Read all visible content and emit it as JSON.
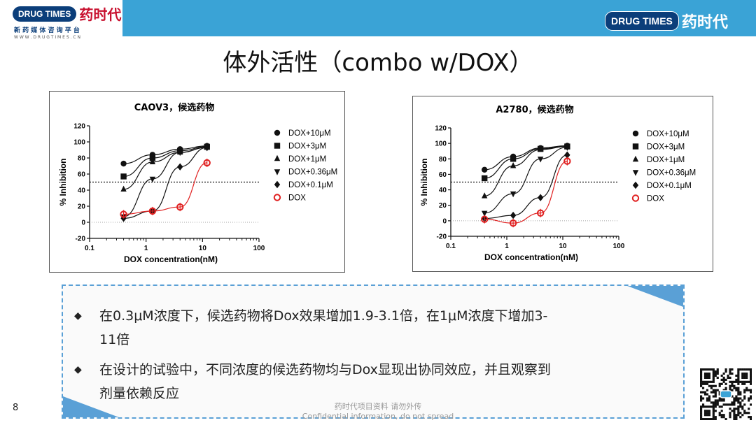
{
  "header": {
    "logo_left": {
      "pill": "DRUG TIMES",
      "cn": "药时代",
      "sub1": "新 药 媒 体 咨 询 平 台",
      "sub2": "W W W . D R U G T I M E S . C N"
    },
    "logo_right": {
      "pill": "DRUG TIMES",
      "cn": "药时代"
    }
  },
  "slide": {
    "title": "体外活性（combo w/DOX）",
    "page_number": "8",
    "footer_line1": "药时代项目资料 请勿外传",
    "footer_line2": "Confidential information, do not spread"
  },
  "bullets": [
    {
      "line1": "在0.3μM浓度下，候选药物将Dox效果增加1.9-3.1倍，在1μM浓度下增加3-",
      "line2": "11倍"
    },
    {
      "line1": "在设计的试验中，不同浓度的候选药物均与Dox显现出协同效应，并且观察到",
      "line2": "剂量依赖反应"
    }
  ],
  "colors": {
    "banner": "#3aa3d6",
    "dox_series": "#e02020",
    "series": "#111111",
    "bullet_border": "#5aa0d6"
  },
  "chart_data": [
    {
      "type": "scatter",
      "title": "CAOV3，候选药物",
      "xlabel": "DOX concentration(nM)",
      "ylabel": "% Inhibition",
      "x_scale": "log",
      "xlim": [
        0.1,
        100
      ],
      "ylim": [
        -20,
        120
      ],
      "x_ticks": [
        "0.1",
        "1",
        "10",
        "100"
      ],
      "y_ticks": [
        "-20",
        "0",
        "20",
        "40",
        "60",
        "80",
        "100",
        "120"
      ],
      "reference_line_y": 50,
      "legend_position": "right",
      "x": [
        0.4,
        1.3,
        4,
        12
      ],
      "series": [
        {
          "name": "DOX+10μM",
          "marker": "circle",
          "values": [
            73,
            84,
            91,
            95
          ]
        },
        {
          "name": "DOX+3μM",
          "marker": "square",
          "values": [
            57,
            80,
            89,
            94
          ]
        },
        {
          "name": "DOX+1μM",
          "marker": "triangle-up",
          "values": [
            41,
            75,
            87,
            93
          ]
        },
        {
          "name": "DOX+0.36μM",
          "marker": "triangle-down",
          "values": [
            7,
            54,
            87,
            93
          ]
        },
        {
          "name": "DOX+0.1μM",
          "marker": "diamond",
          "values": [
            5,
            14,
            69,
            93
          ]
        },
        {
          "name": "DOX",
          "marker": "open-circle",
          "values": [
            10,
            14,
            19,
            74
          ]
        }
      ]
    },
    {
      "type": "scatter",
      "title": "A2780，候选药物",
      "xlabel": "DOX concentration(nM)",
      "ylabel": "% Inhibition",
      "x_scale": "log",
      "xlim": [
        0.1,
        100
      ],
      "ylim": [
        -20,
        120
      ],
      "x_ticks": [
        "0.1",
        "1",
        "10",
        "100"
      ],
      "y_ticks": [
        "-20",
        "0",
        "20",
        "40",
        "60",
        "80",
        "100",
        "120"
      ],
      "reference_line_y": 50,
      "legend_position": "right",
      "x": [
        0.4,
        1.3,
        4,
        12
      ],
      "series": [
        {
          "name": "DOX+10μM",
          "marker": "circle",
          "values": [
            66,
            83,
            94,
            97
          ]
        },
        {
          "name": "DOX+3μM",
          "marker": "square",
          "values": [
            55,
            80,
            93,
            96
          ]
        },
        {
          "name": "DOX+1μM",
          "marker": "triangle-up",
          "values": [
            32,
            71,
            92,
            96
          ]
        },
        {
          "name": "DOX+0.36μM",
          "marker": "triangle-down",
          "values": [
            10,
            35,
            80,
            95
          ]
        },
        {
          "name": "DOX+0.1μM",
          "marker": "diamond",
          "values": [
            3,
            7,
            30,
            85
          ]
        },
        {
          "name": "DOX",
          "marker": "open-circle",
          "values": [
            2,
            -3,
            10,
            77
          ]
        }
      ]
    }
  ]
}
